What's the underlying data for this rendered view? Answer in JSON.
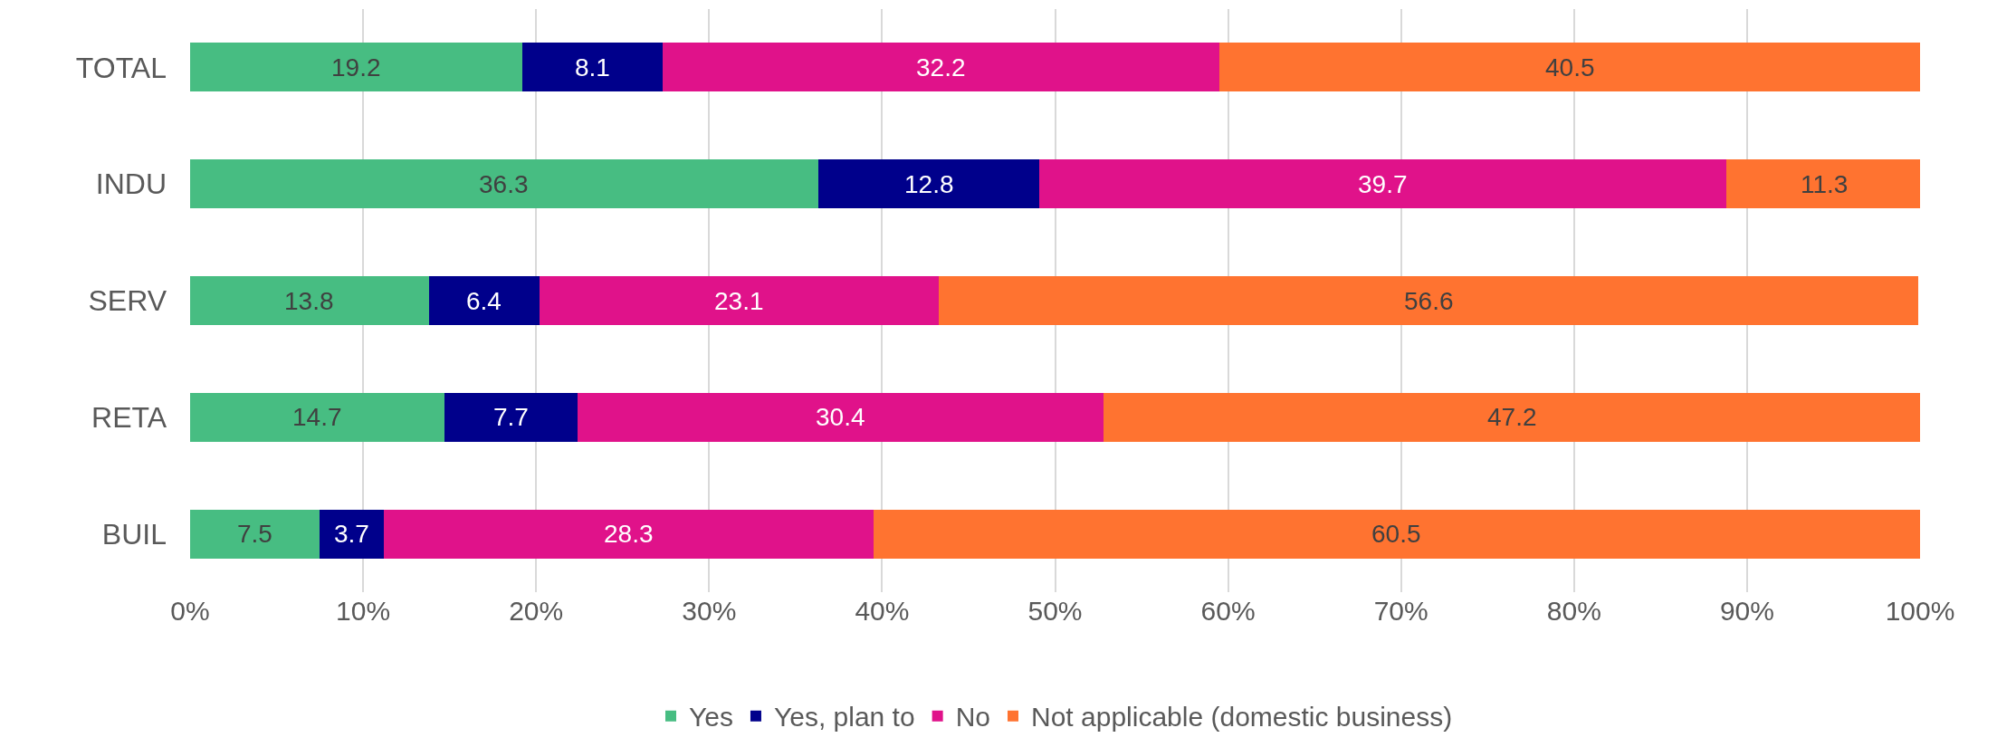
{
  "chart_data": {
    "type": "bar",
    "orientation": "horizontal",
    "stacked": true,
    "categories": [
      "TOTAL",
      "INDU",
      "SERV",
      "RETA",
      "BUIL"
    ],
    "series": [
      {
        "name": "Yes",
        "color": "#47bd82",
        "values": [
          19.2,
          36.3,
          13.8,
          14.7,
          7.5
        ]
      },
      {
        "name": "Yes, plan to",
        "color": "#00008b",
        "values": [
          8.1,
          12.8,
          6.4,
          7.7,
          3.7
        ]
      },
      {
        "name": "No",
        "color": "#e0128a",
        "values": [
          32.2,
          39.7,
          23.1,
          30.4,
          28.3
        ]
      },
      {
        "name": "Not applicable (domestic business)",
        "color": "#ff7330",
        "values": [
          40.5,
          11.3,
          56.6,
          47.2,
          60.5
        ]
      }
    ],
    "xlim": [
      0,
      100
    ],
    "xticks": [
      {
        "value": 0,
        "label": "0%"
      },
      {
        "value": 10,
        "label": "10%"
      },
      {
        "value": 20,
        "label": "20%"
      },
      {
        "value": 30,
        "label": "30%"
      },
      {
        "value": 40,
        "label": "40%"
      },
      {
        "value": 50,
        "label": "50%"
      },
      {
        "value": 60,
        "label": "60%"
      },
      {
        "value": 70,
        "label": "70%"
      },
      {
        "value": 80,
        "label": "80%"
      },
      {
        "value": 90,
        "label": "90%"
      },
      {
        "value": 100,
        "label": "100%"
      }
    ],
    "grid": "x",
    "legend": "bottom",
    "data_labels": true
  }
}
